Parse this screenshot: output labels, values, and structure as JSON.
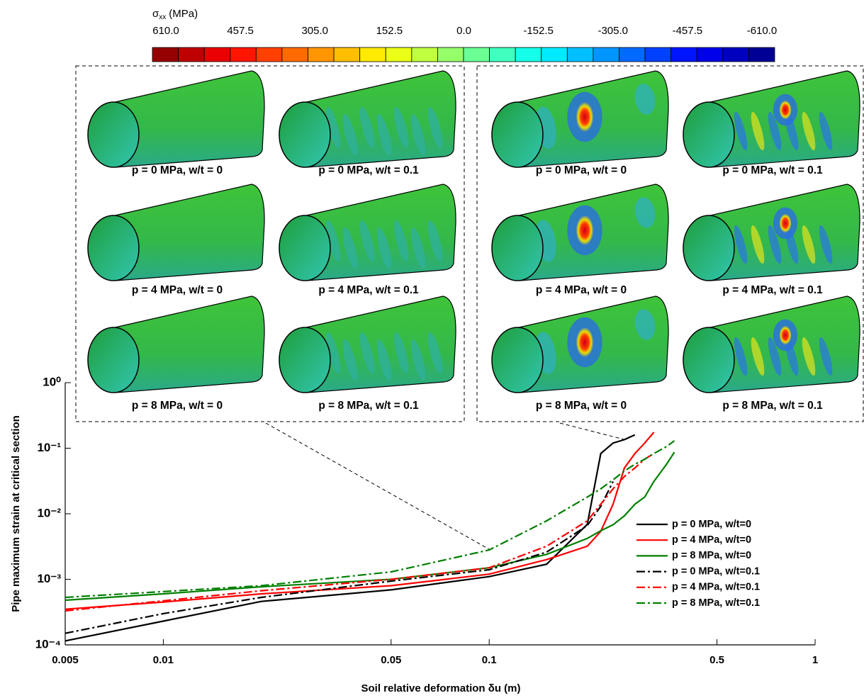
{
  "chart_data": {
    "type": "line",
    "x_label": "Soil relative deformation  δu (m)",
    "y_label": "Pipe maximum strain at critical section",
    "x_scale": "log",
    "y_scale": "log",
    "xlim": [
      0.005,
      1
    ],
    "ylim": [
      0.0001,
      1
    ],
    "xticks": [
      0.005,
      0.01,
      0.05,
      0.1,
      0.5,
      1
    ],
    "yticks": [
      {
        "value": 0.0001,
        "label": "10⁻⁴"
      },
      {
        "value": 0.001,
        "label": "10⁻³"
      },
      {
        "value": 0.01,
        "label": "10⁻²"
      },
      {
        "value": 0.1,
        "label": "10⁻¹"
      },
      {
        "value": 1,
        "label": "10⁰"
      }
    ],
    "legend": "lower right",
    "x": [
      0.005,
      0.01,
      0.02,
      0.05,
      0.1,
      0.15,
      0.2,
      0.22,
      0.24,
      0.26,
      0.28,
      0.3,
      0.32,
      0.35,
      0.37
    ],
    "series": [
      {
        "name": "p = 0 MPa, w/t=0",
        "color": "#000000",
        "style": "solid",
        "values": [
          0.000115,
          0.00023,
          0.00046,
          0.00069,
          0.0011,
          0.0017,
          0.0069,
          0.083,
          0.12,
          0.135,
          0.16,
          null,
          null,
          null,
          null
        ]
      },
      {
        "name": "p = 4 MPa, w/t=0",
        "color": "#ff0000",
        "style": "solid",
        "values": [
          0.00035,
          0.00045,
          0.0006,
          0.0008,
          0.0012,
          0.002,
          0.0032,
          0.0054,
          0.014,
          0.05,
          0.083,
          0.12,
          0.175,
          null,
          null
        ]
      },
      {
        "name": "p = 8 MPa, w/t=0",
        "color": "#007f00",
        "style": "solid",
        "values": [
          0.00048,
          0.0006,
          0.00077,
          0.001,
          0.0015,
          0.0024,
          0.0042,
          0.0055,
          0.0068,
          0.0093,
          0.014,
          0.018,
          0.031,
          0.057,
          0.087
        ]
      },
      {
        "name": "p = 0 MPa, w/t=0.1",
        "color": "#000000",
        "style": "dashdot",
        "values": [
          0.00015,
          0.0003,
          0.00053,
          0.00094,
          0.0014,
          0.0026,
          0.0066,
          0.013,
          0.031,
          null,
          null,
          null,
          null,
          null,
          null
        ]
      },
      {
        "name": "p = 4 MPa, w/t=0.1",
        "color": "#ff0000",
        "style": "dashdot",
        "values": [
          0.00033,
          0.00047,
          0.00067,
          0.001,
          0.0015,
          0.0032,
          0.0078,
          0.014,
          0.024,
          0.037,
          0.05,
          0.068,
          0.083,
          null,
          null
        ]
      },
      {
        "name": "p = 8 MPa, w/t=0.1",
        "color": "#007f00",
        "style": "dashdot",
        "values": [
          0.00053,
          0.00065,
          0.0008,
          0.0013,
          0.0028,
          0.0078,
          0.018,
          0.024,
          0.033,
          0.045,
          0.057,
          0.068,
          0.083,
          0.106,
          0.13
        ]
      }
    ],
    "colorbar": {
      "symbol": "σ",
      "subscript": "xx",
      "unit": "(MPa)",
      "lim": [
        610,
        -610
      ],
      "ticks": [
        {
          "value": 610,
          "label": "610.0"
        },
        {
          "value": 457.5,
          "label": "457.5"
        },
        {
          "value": 305,
          "label": "305.0"
        },
        {
          "value": 152.5,
          "label": "152.5"
        },
        {
          "value": 0,
          "label": "0.0"
        },
        {
          "value": -152.5,
          "label": "-152.5"
        },
        {
          "value": -305,
          "label": "-305.0"
        },
        {
          "value": -457.5,
          "label": "-457.5"
        },
        {
          "value": -610,
          "label": "-610.0"
        }
      ]
    },
    "panels": [
      {
        "captions": [
          "p = 0 MPa, w/t = 0",
          "p = 0 MPa, w/t = 0.1",
          "p = 4 MPa, w/t = 0",
          "p = 4 MPa, w/t = 0.1",
          "p = 8 MPa, w/t = 0",
          "p = 8 MPa, w/t = 0.1"
        ]
      },
      {
        "captions": [
          "p = 0 MPa, w/t = 0",
          "p = 0 MPa, w/t = 0.1",
          "p = 4 MPa, w/t = 0",
          "p = 4 MPa, w/t = 0.1",
          "p = 8 MPa, w/t = 0",
          "p = 8 MPa, w/t = 0.1"
        ]
      }
    ]
  }
}
